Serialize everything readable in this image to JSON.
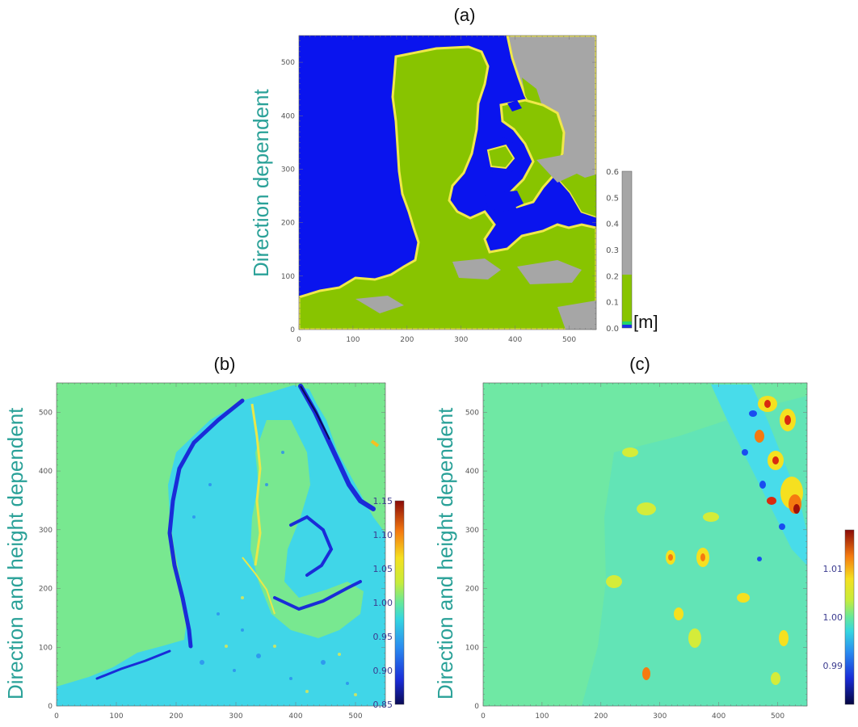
{
  "chart_data": [
    {
      "type": "heatmap",
      "panel": "(a)",
      "side_label": "Direction dependent",
      "x_ticks": [
        "0",
        "100",
        "200",
        "300",
        "400",
        "500"
      ],
      "y_ticks": [
        "0",
        "100",
        "200",
        "300",
        "400",
        "500"
      ],
      "xlim": [
        0,
        550
      ],
      "ylim": [
        0,
        550
      ],
      "colorbar": {
        "ticks": [
          "0.0",
          "0.1",
          "0.2",
          "0.3",
          "0.4",
          "0.5",
          "0.6"
        ],
        "range": [
          0.0,
          0.6
        ],
        "unit": "[m]",
        "colors": [
          "#1b2ee6",
          "#22d46a",
          "#88c400",
          "#a6a6a6"
        ]
      }
    },
    {
      "type": "heatmap",
      "panel": "(b)",
      "side_label": "Direction and height dependent",
      "x_ticks": [
        "0",
        "100",
        "200",
        "300",
        "400",
        "500"
      ],
      "y_ticks": [
        "0",
        "100",
        "200",
        "300",
        "400",
        "500"
      ],
      "xlim": [
        0,
        550
      ],
      "ylim": [
        0,
        550
      ],
      "colorbar": {
        "ticks": [
          "0.85",
          "0.90",
          "0.95",
          "1.00",
          "1.05",
          "1.10",
          "1.15"
        ],
        "range": [
          0.85,
          1.15
        ]
      }
    },
    {
      "type": "heatmap",
      "panel": "(c)",
      "side_label": "Direction and height dependent",
      "x_ticks": [
        "0",
        "100",
        "200",
        "300",
        "400",
        "500"
      ],
      "y_ticks": [
        "0",
        "100",
        "200",
        "300",
        "400",
        "500"
      ],
      "xlim": [
        0,
        550
      ],
      "ylim": [
        0,
        550
      ],
      "colorbar": {
        "ticks": [
          "0.99",
          "1.00",
          "1.01"
        ],
        "range": [
          0.982,
          1.018
        ]
      }
    }
  ]
}
